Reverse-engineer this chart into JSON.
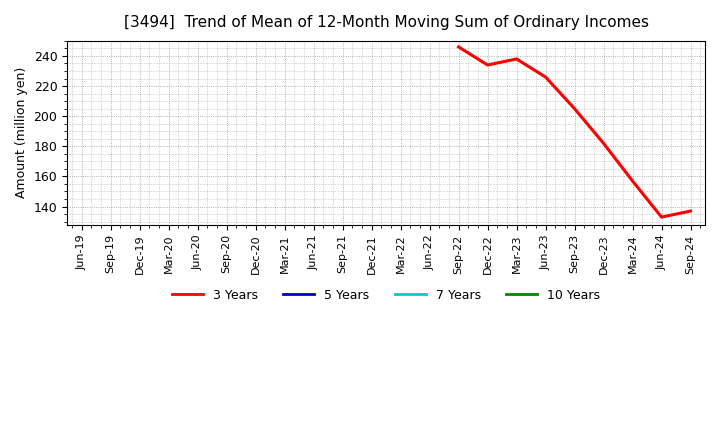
{
  "title": "[3494]  Trend of Mean of 12-Month Moving Sum of Ordinary Incomes",
  "ylabel": "Amount (million yen)",
  "ylim": [
    128,
    250
  ],
  "yticks": [
    140,
    160,
    180,
    200,
    220,
    240
  ],
  "background_color": "#ffffff",
  "plot_bg_color": "#ffffff",
  "grid_color": "#999999",
  "line_color_3y": "#ff0000",
  "line_color_5y": "#0000cc",
  "line_color_7y": "#00cccc",
  "line_color_10y": "#008800",
  "line_width": 2.2,
  "x_labels": [
    "Jun-19",
    "Sep-19",
    "Dec-19",
    "Mar-20",
    "Jun-20",
    "Sep-20",
    "Dec-20",
    "Mar-21",
    "Jun-21",
    "Sep-21",
    "Dec-21",
    "Mar-22",
    "Jun-22",
    "Sep-22",
    "Dec-22",
    "Mar-23",
    "Jun-23",
    "Sep-23",
    "Dec-23",
    "Mar-24",
    "Jun-24",
    "Sep-24"
  ],
  "data_3y": {
    "x_indices": [
      13,
      14,
      15,
      16,
      17,
      18,
      19,
      20,
      21
    ],
    "values": [
      246,
      234,
      238,
      226,
      205,
      182,
      157,
      133,
      137
    ]
  },
  "legend_entries": [
    {
      "label": "3 Years",
      "color": "#ff0000"
    },
    {
      "label": "5 Years",
      "color": "#0000cc"
    },
    {
      "label": "7 Years",
      "color": "#00cccc"
    },
    {
      "label": "10 Years",
      "color": "#008800"
    }
  ]
}
